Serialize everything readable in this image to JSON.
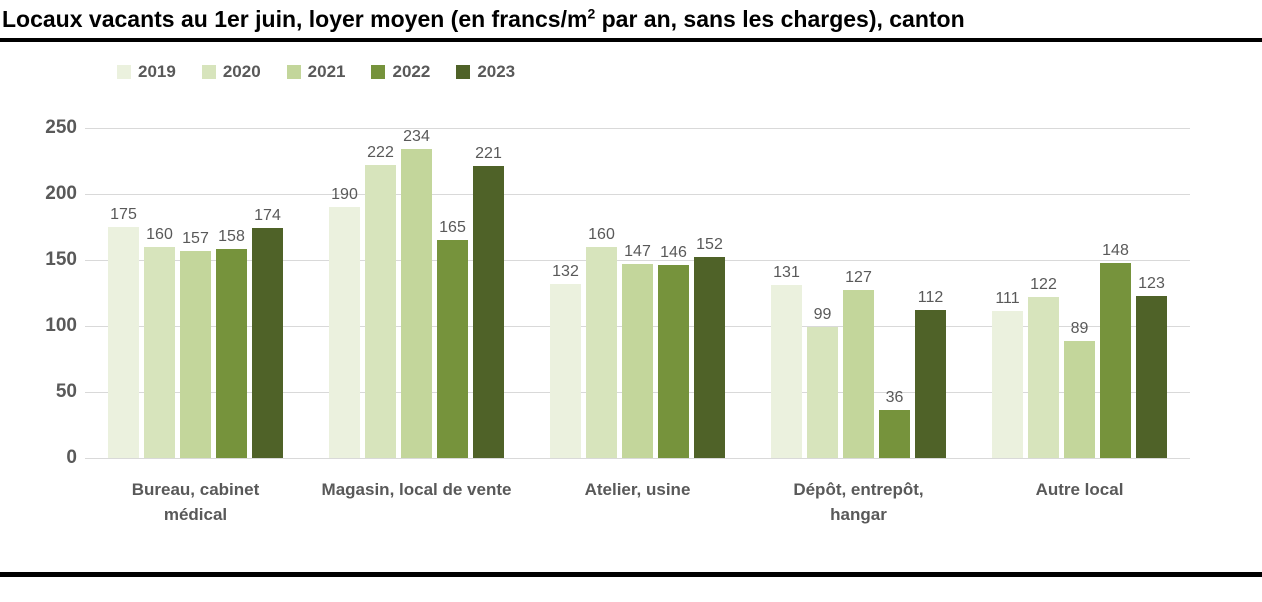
{
  "title": {
    "before_sup": "Locaux vacants au 1er juin, loyer moyen (en francs/m",
    "sup": "2",
    "after_sup": " par an, sans les charges), canton"
  },
  "chart_data": {
    "type": "bar",
    "title": "Locaux vacants au 1er juin, loyer moyen (en francs/m2 par an, sans les charges), canton",
    "categories": [
      "Bureau, cabinet\nmédical",
      "Magasin, local de vente",
      "Atelier, usine",
      "Dépôt, entrepôt,\nhangar",
      "Autre local"
    ],
    "series": [
      {
        "name": "2019",
        "color": "#EBF1DE",
        "values": [
          175,
          190,
          132,
          131,
          111
        ]
      },
      {
        "name": "2020",
        "color": "#D7E4BC",
        "values": [
          160,
          222,
          160,
          99,
          122
        ]
      },
      {
        "name": "2021",
        "color": "#C3D69B",
        "values": [
          157,
          234,
          147,
          127,
          89
        ]
      },
      {
        "name": "2022",
        "color": "#76933C",
        "values": [
          158,
          165,
          146,
          36,
          148
        ]
      },
      {
        "name": "2023",
        "color": "#4F6228",
        "values": [
          174,
          221,
          152,
          112,
          123
        ]
      }
    ],
    "xlabel": "",
    "ylabel": "",
    "ylim": [
      0,
      250
    ],
    "yticks": [
      0,
      50,
      100,
      150,
      200,
      250
    ],
    "grid": "horizontal",
    "legend_position": "top-left",
    "value_labels": true
  },
  "colors": {
    "axis_text": "#595959",
    "gridline": "#D9D9D9",
    "title_text": "#000000",
    "rule": "#000000",
    "background": "#FFFFFF"
  }
}
